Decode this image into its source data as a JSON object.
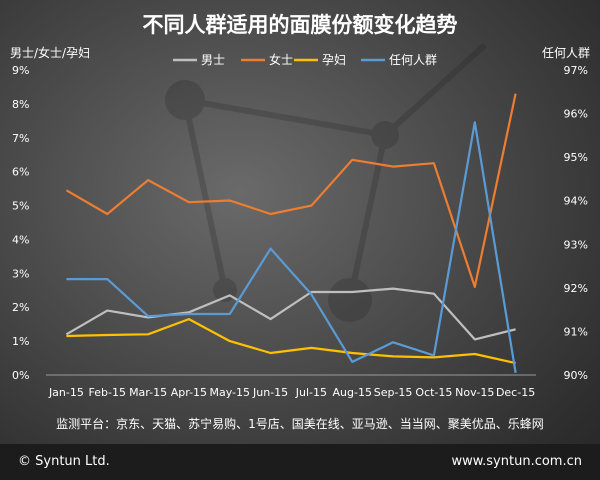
{
  "chart_data": {
    "type": "line",
    "title": "不同人群适用的面膜份额变化趋势",
    "y_left_label": "男士/女士/孕妇",
    "y_right_label": "任何人群",
    "categories": [
      "Jan-15",
      "Feb-15",
      "Mar-15",
      "Apr-15",
      "May-15",
      "Jun-15",
      "Jul-15",
      "Aug-15",
      "Sep-15",
      "Oct-15",
      "Nov-15",
      "Dec-15"
    ],
    "y_left_range": [
      0,
      9
    ],
    "y_left_ticks": [
      "0%",
      "1%",
      "2%",
      "3%",
      "4%",
      "5%",
      "6%",
      "7%",
      "8%",
      "9%"
    ],
    "y_right_range": [
      90,
      97
    ],
    "y_right_ticks": [
      "90%",
      "91%",
      "92%",
      "93%",
      "94%",
      "95%",
      "96%",
      "97%"
    ],
    "legend_position": "top",
    "series": [
      {
        "name": "男士",
        "axis": "left",
        "color": "#bfbfbf",
        "values": [
          1.2,
          1.9,
          1.7,
          1.85,
          2.35,
          1.65,
          2.45,
          2.45,
          2.55,
          2.4,
          1.05,
          1.35
        ]
      },
      {
        "name": "女士",
        "axis": "left",
        "color": "#ed7d31",
        "values": [
          5.45,
          4.75,
          5.75,
          5.1,
          5.15,
          4.75,
          5.0,
          6.35,
          6.15,
          6.25,
          2.6,
          8.3
        ]
      },
      {
        "name": "孕妇",
        "axis": "left",
        "color": "#ffc000",
        "values": [
          1.15,
          1.18,
          1.2,
          1.65,
          1.0,
          0.65,
          0.8,
          0.65,
          0.55,
          0.52,
          0.62,
          0.35
        ]
      },
      {
        "name": "任何人群",
        "axis": "right",
        "color": "#5b9bd5",
        "values": [
          92.2,
          92.2,
          91.35,
          91.4,
          91.4,
          92.9,
          91.85,
          90.3,
          90.75,
          90.45,
          95.8,
          90.05
        ]
      }
    ]
  },
  "sources_text": "监测平台：京东、天猫、苏宁易购、1号店、国美在线、亚马逊、当当网、聚美优品、乐蜂网",
  "footer": {
    "copyright": "© Syntun Ltd.",
    "website": "www.syntun.com.cn"
  }
}
